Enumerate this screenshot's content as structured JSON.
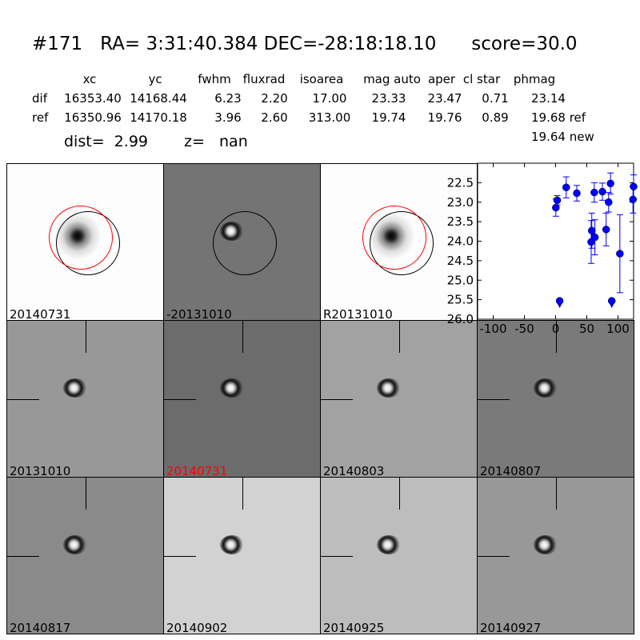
{
  "title": "#171   RA= 3:31:40.384 DEC=-28:18:18.10      score=30.0",
  "table": {
    "headers": [
      "xc",
      "yc",
      "fwhm",
      "fluxrad",
      "isoarea",
      "mag auto",
      "aper",
      "cl star",
      "phmag"
    ],
    "rows": [
      {
        "label": "dif",
        "values": [
          "16353.40",
          "14168.44",
          "6.23",
          "2.20",
          "17.00",
          "23.33",
          "23.47",
          "0.71",
          "23.14"
        ]
      },
      {
        "label": "ref",
        "values": [
          "16350.96",
          "14170.18",
          "3.96",
          "2.60",
          "313.00",
          "19.74",
          "19.76",
          "0.89",
          "19.68 ref"
        ]
      }
    ],
    "extra": "19.64 new",
    "dist": "dist=  2.99",
    "z": "z=   nan"
  },
  "panels": [
    {
      "label": "20140731",
      "bg": "#fdfdfd",
      "color": "#000000"
    },
    {
      "label": "-20131010",
      "bg": "#747474",
      "color": "#000000"
    },
    {
      "label": "R20131010",
      "bg": "#fdfdfd",
      "color": "#000000"
    },
    {
      "label": "20131010",
      "bg": "#989898",
      "color": "#000000"
    },
    {
      "label": "20140731",
      "bg": "#6c6c6c",
      "color": "#ff0000"
    },
    {
      "label": "20140803",
      "bg": "#a2a2a2",
      "color": "#000000"
    },
    {
      "label": "20140807",
      "bg": "#7a7a7a",
      "color": "#000000"
    },
    {
      "label": "20140817",
      "bg": "#8a8a8a",
      "color": "#000000"
    },
    {
      "label": "20140902",
      "bg": "#d2d2d2",
      "color": "#000000"
    },
    {
      "label": "20140925",
      "bg": "#bdbdbd",
      "color": "#000000"
    },
    {
      "label": "20140927",
      "bg": "#989898",
      "color": "#000000"
    }
  ],
  "chart_data": {
    "type": "scatter",
    "xlim": [
      -125,
      125
    ],
    "ylim": [
      26,
      22
    ],
    "y_inverted": true,
    "xticks": [
      -100,
      -50,
      0,
      50,
      100
    ],
    "yticks": [
      22.5,
      23.0,
      23.5,
      24.0,
      24.5,
      25.0,
      25.5,
      26.0
    ],
    "color": "#0000ff",
    "points": [
      {
        "x": 0.4,
        "y": 23.14,
        "err": 0.22
      },
      {
        "x": 2.6,
        "y": 22.95,
        "err": 0.12
      },
      {
        "x": 17,
        "y": 22.62,
        "err": 0.27
      },
      {
        "x": 34,
        "y": 22.77,
        "err": 0.2
      },
      {
        "x": 62,
        "y": 22.75,
        "err": 0.25
      },
      {
        "x": 75,
        "y": 22.73,
        "err": 0.22
      },
      {
        "x": 88,
        "y": 22.52,
        "err": 0.27
      },
      {
        "x": 85,
        "y": 23.0,
        "err": 0.25
      },
      {
        "x": 58,
        "y": 23.73,
        "err": 0.45
      },
      {
        "x": 57,
        "y": 24.02,
        "err": 0.55
      },
      {
        "x": 63,
        "y": 23.9,
        "err": 0.45
      },
      {
        "x": 81,
        "y": 23.7,
        "err": 0.42
      },
      {
        "x": 103,
        "y": 24.32,
        "err": 1.0
      },
      {
        "x": 124,
        "y": 22.93,
        "err": 0.35
      },
      {
        "x": 125,
        "y": 22.6,
        "err": 0.3
      }
    ],
    "upper_limits": [
      {
        "x": 6.5,
        "y": 25.53
      },
      {
        "x": 90,
        "y": 25.53
      }
    ]
  }
}
